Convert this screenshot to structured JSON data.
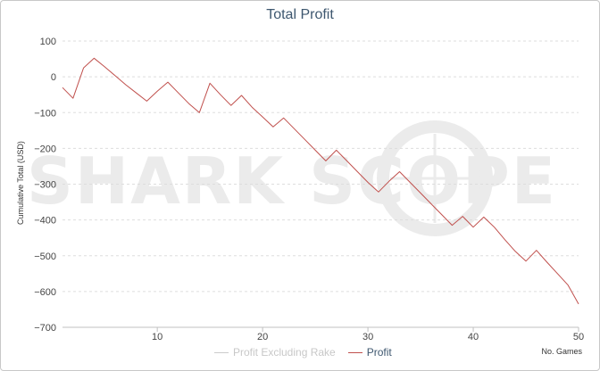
{
  "chart_data": {
    "type": "line",
    "title": "Total Profit",
    "xlabel": "No. Games",
    "ylabel": "Cumulative Total (USD)",
    "xlim": [
      1,
      50
    ],
    "ylim": [
      -700,
      100
    ],
    "xticks": [
      10,
      20,
      30,
      40,
      50
    ],
    "yticks": [
      100,
      0,
      -100,
      -200,
      -300,
      -400,
      -500,
      -600,
      -700
    ],
    "grid": true,
    "legend_position": "bottom",
    "watermark": "SHARK SCOPE",
    "series": [
      {
        "name": "Profit Excluding Rake",
        "color": "#cccccc",
        "visible": false,
        "x": [],
        "y": []
      },
      {
        "name": "Profit",
        "color": "#c0504d",
        "visible": true,
        "x": [
          1,
          2,
          3,
          4,
          5,
          6,
          7,
          8,
          9,
          10,
          11,
          12,
          13,
          14,
          15,
          16,
          17,
          18,
          19,
          20,
          21,
          22,
          23,
          24,
          25,
          26,
          27,
          28,
          29,
          30,
          31,
          32,
          33,
          34,
          35,
          36,
          37,
          38,
          39,
          40,
          41,
          42,
          43,
          44,
          45,
          46,
          47,
          48,
          49,
          50
        ],
        "y": [
          -30,
          -60,
          25,
          52,
          28,
          3,
          -22,
          -45,
          -68,
          -40,
          -15,
          -45,
          -75,
          -100,
          -18,
          -50,
          -80,
          -52,
          -85,
          -112,
          -140,
          -115,
          -145,
          -175,
          -205,
          -235,
          -205,
          -235,
          -265,
          -295,
          -322,
          -292,
          -265,
          -295,
          -325,
          -355,
          -385,
          -415,
          -390,
          -420,
          -392,
          -420,
          -455,
          -488,
          -515,
          -485,
          -518,
          -550,
          -582,
          -635
        ]
      }
    ]
  }
}
